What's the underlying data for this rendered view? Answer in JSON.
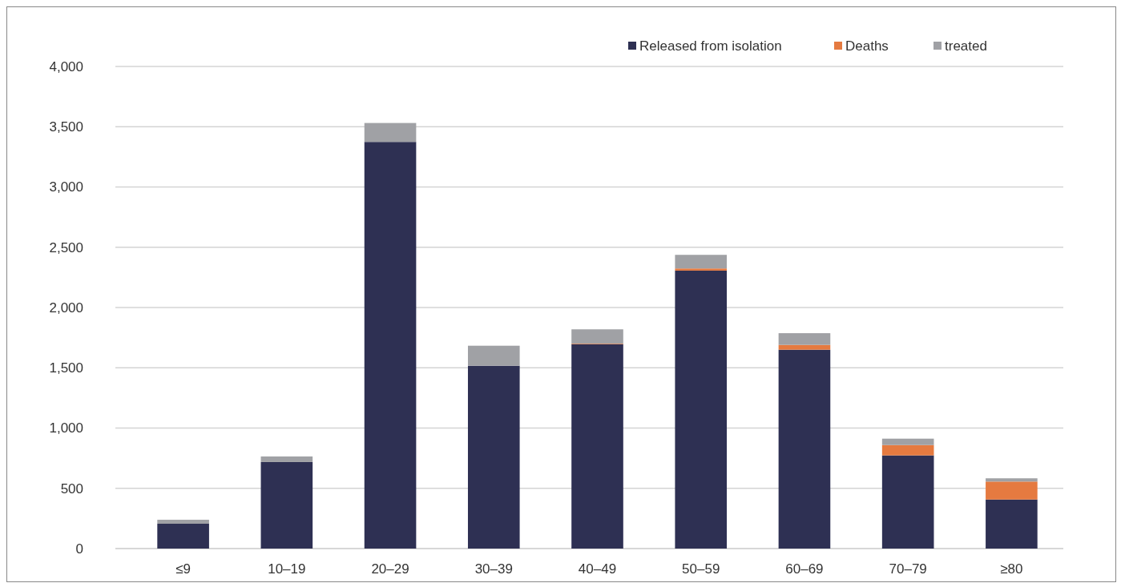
{
  "chart_data": {
    "type": "bar",
    "stacked": true,
    "categories": [
      "≤9",
      "10–19",
      "20–29",
      "30–39",
      "40–49",
      "50–59",
      "60–69",
      "70–79",
      "≥80"
    ],
    "series": [
      {
        "name": "Released from isolation",
        "color": "#2e3053",
        "values": [
          206,
          718,
          3374,
          1517,
          1695,
          2306,
          1650,
          773,
          407
        ]
      },
      {
        "name": "Deaths",
        "color": "#e57a40",
        "values": [
          0,
          0,
          0,
          0,
          5,
          18,
          40,
          86,
          149
        ]
      },
      {
        "name": "treated",
        "color": "#a0a1a5",
        "values": [
          33,
          46,
          157,
          166,
          119,
          113,
          97,
          53,
          27
        ]
      }
    ],
    "ylim": [
      0,
      4000
    ],
    "yticks": [
      {
        "value": 0,
        "label": "0"
      },
      {
        "value": 500,
        "label": "500"
      },
      {
        "value": 1000,
        "label": "1,000"
      },
      {
        "value": 1500,
        "label": "1,500"
      },
      {
        "value": 2000,
        "label": "2,000"
      },
      {
        "value": 2500,
        "label": "2,500"
      },
      {
        "value": 3000,
        "label": "3,000"
      },
      {
        "value": 3500,
        "label": "3,500"
      },
      {
        "value": 4000,
        "label": "4,000"
      }
    ],
    "grid": "y",
    "legend": "top right"
  }
}
